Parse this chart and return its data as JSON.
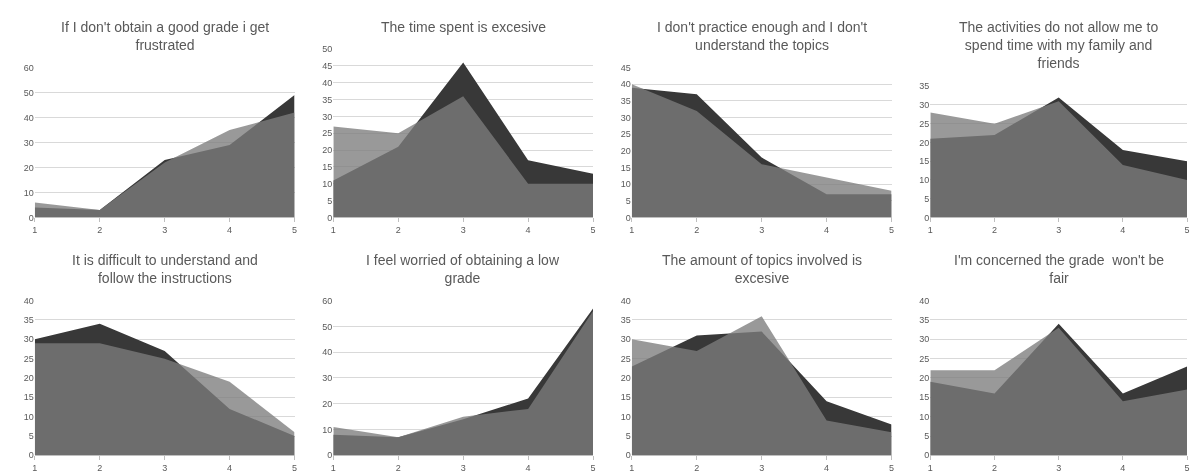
{
  "chart_data": [
    {
      "type": "area",
      "title": "If I don't obtain a good grade i get frustrated",
      "x": [
        1,
        2,
        3,
        4,
        5
      ],
      "xlim": [
        1,
        5
      ],
      "xticks": [
        1,
        2,
        3,
        4,
        5
      ],
      "ylim": [
        0,
        60
      ],
      "yticks": [
        0,
        10,
        20,
        30,
        40,
        50,
        60
      ],
      "grid": "y",
      "series": [
        {
          "color": "#383838",
          "values": [
            4,
            3,
            23,
            29,
            49
          ]
        },
        {
          "color": "#7c7c7c",
          "values": [
            6,
            3,
            22,
            35,
            42
          ]
        }
      ]
    },
    {
      "type": "area",
      "title": "The time spent is excesive",
      "x": [
        1,
        2,
        3,
        4,
        5
      ],
      "xlim": [
        1,
        5
      ],
      "xticks": [
        1,
        2,
        3,
        4,
        5
      ],
      "ylim": [
        0,
        50
      ],
      "yticks": [
        0,
        5,
        10,
        15,
        20,
        25,
        30,
        35,
        40,
        45,
        50
      ],
      "grid": "y",
      "series": [
        {
          "color": "#383838",
          "values": [
            11,
            21,
            46,
            17,
            13
          ]
        },
        {
          "color": "#7c7c7c",
          "values": [
            27,
            25,
            36,
            10,
            10
          ]
        }
      ]
    },
    {
      "type": "area",
      "title": "I don't practice enough and I don't understand the topics",
      "x": [
        1,
        2,
        3,
        4,
        5
      ],
      "xlim": [
        1,
        5
      ],
      "xticks": [
        1,
        2,
        3,
        4,
        5
      ],
      "ylim": [
        0,
        45
      ],
      "yticks": [
        0,
        5,
        10,
        15,
        20,
        25,
        30,
        35,
        40,
        45
      ],
      "grid": "y",
      "series": [
        {
          "color": "#383838",
          "values": [
            39,
            37,
            18,
            7,
            7
          ]
        },
        {
          "color": "#7c7c7c",
          "values": [
            40,
            32,
            16,
            12,
            8
          ]
        }
      ]
    },
    {
      "type": "area",
      "title": "The activities do not allow me to spend time with my family and friends",
      "x": [
        1,
        2,
        3,
        4,
        5
      ],
      "xlim": [
        1,
        5
      ],
      "xticks": [
        1,
        2,
        3,
        4,
        5
      ],
      "ylim": [
        0,
        35
      ],
      "yticks": [
        0,
        5,
        10,
        15,
        20,
        25,
        30,
        35
      ],
      "grid": "y",
      "series": [
        {
          "color": "#383838",
          "values": [
            21,
            22,
            32,
            18,
            15
          ]
        },
        {
          "color": "#7c7c7c",
          "values": [
            28,
            25,
            31,
            14,
            10
          ]
        }
      ]
    },
    {
      "type": "area",
      "title": "It is difficult to understand and follow the instructions",
      "x": [
        1,
        2,
        3,
        4,
        5
      ],
      "xlim": [
        1,
        5
      ],
      "xticks": [
        1,
        2,
        3,
        4,
        5
      ],
      "ylim": [
        0,
        40
      ],
      "yticks": [
        0,
        5,
        10,
        15,
        20,
        25,
        30,
        35,
        40
      ],
      "grid": "y",
      "series": [
        {
          "color": "#383838",
          "values": [
            30,
            34,
            27,
            12,
            5
          ]
        },
        {
          "color": "#7c7c7c",
          "values": [
            29,
            29,
            25,
            19,
            6
          ]
        }
      ]
    },
    {
      "type": "area",
      "title": "I feel worried of obtaining a low grade",
      "x": [
        1,
        2,
        3,
        4,
        5
      ],
      "xlim": [
        1,
        5
      ],
      "xticks": [
        1,
        2,
        3,
        4,
        5
      ],
      "ylim": [
        0,
        60
      ],
      "yticks": [
        0,
        10,
        20,
        30,
        40,
        50,
        60
      ],
      "grid": "y",
      "series": [
        {
          "color": "#383838",
          "values": [
            8,
            7,
            14,
            22,
            57
          ]
        },
        {
          "color": "#7c7c7c",
          "values": [
            11,
            7,
            15,
            18,
            56
          ]
        }
      ]
    },
    {
      "type": "area",
      "title": "The amount of topics involved is excesive",
      "x": [
        1,
        2,
        3,
        4,
        5
      ],
      "xlim": [
        1,
        5
      ],
      "xticks": [
        1,
        2,
        3,
        4,
        5
      ],
      "ylim": [
        0,
        40
      ],
      "yticks": [
        0,
        5,
        10,
        15,
        20,
        25,
        30,
        35,
        40
      ],
      "grid": "y",
      "series": [
        {
          "color": "#383838",
          "values": [
            23,
            31,
            32,
            14,
            8
          ]
        },
        {
          "color": "#7c7c7c",
          "values": [
            30,
            27,
            36,
            9,
            6
          ]
        }
      ]
    },
    {
      "type": "area",
      "title": "I'm concerned the grade  won't be fair",
      "x": [
        1,
        2,
        3,
        4,
        5
      ],
      "xlim": [
        1,
        5
      ],
      "xticks": [
        1,
        2,
        3,
        4,
        5
      ],
      "ylim": [
        0,
        40
      ],
      "yticks": [
        0,
        5,
        10,
        15,
        20,
        25,
        30,
        35,
        40
      ],
      "grid": "y",
      "series": [
        {
          "color": "#383838",
          "values": [
            19,
            16,
            34,
            16,
            23
          ]
        },
        {
          "color": "#7c7c7c",
          "values": [
            22,
            22,
            33,
            14,
            17
          ]
        }
      ]
    }
  ]
}
